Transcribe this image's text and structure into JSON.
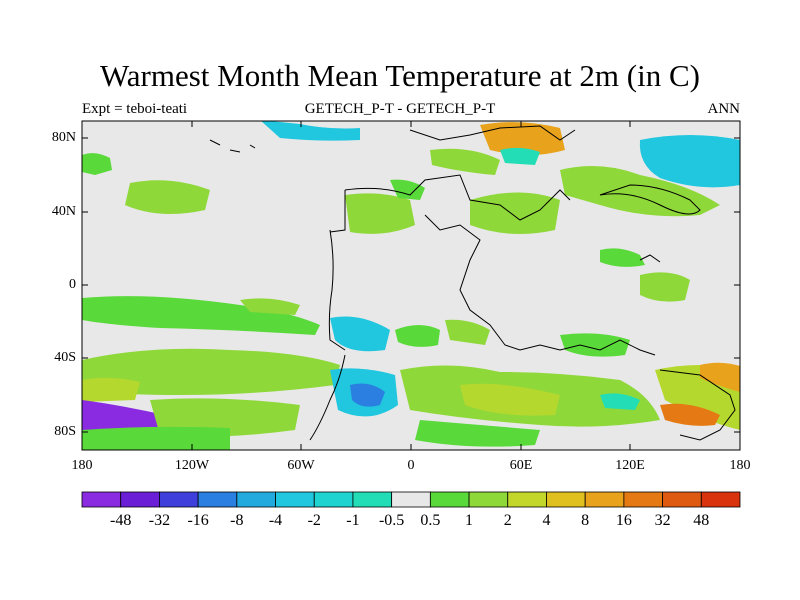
{
  "title": "Warmest Month Mean Temperature at 2m (in C)",
  "subtitle_left": "Expt = teboi-teati",
  "subtitle_center": "GETECH_P-T - GETECH_P-T",
  "subtitle_right": "ANN",
  "lat_labels": [
    "80N",
    "40N",
    "0",
    "40S",
    "80S"
  ],
  "lon_labels": [
    "180",
    "120W",
    "60W",
    "0",
    "60E",
    "120E",
    "180"
  ],
  "colorbar": {
    "colors": [
      "#8a2be2",
      "#6a1fd6",
      "#3f3fdc",
      "#2a7fe0",
      "#22aadf",
      "#21c6df",
      "#1fd3d0",
      "#22ddb5",
      "#e8e8e8",
      "#5ad93a",
      "#8fd83a",
      "#c3d72b",
      "#e0c01e",
      "#e8a21b",
      "#e57a14",
      "#de5a10",
      "#d8330c"
    ],
    "labels": [
      "-48",
      "-32",
      "-16",
      "-8",
      "-4",
      "-2",
      "-1",
      "-0.5",
      "0.5",
      "1",
      "2",
      "4",
      "8",
      "16",
      "32",
      "48"
    ]
  },
  "colors": {
    "background_field": "#e8e8e8",
    "green_light": "#8fd83a",
    "green": "#5ad93a",
    "yellow_green": "#b5d82f",
    "cyan": "#21c6df",
    "turquoise": "#22ddb5",
    "blue": "#2a7fe0",
    "orange": "#e8a21b",
    "red_orange": "#e57a14"
  }
}
